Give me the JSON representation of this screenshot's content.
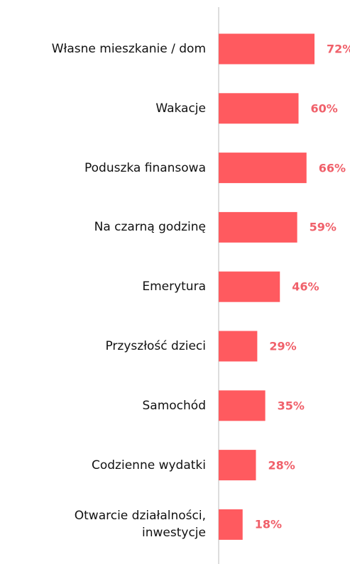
{
  "chart_data": {
    "type": "bar",
    "orientation": "horizontal",
    "categories": [
      "Własne mieszkanie / dom",
      "Wakacje",
      "Poduszka finansowa",
      "Na czarną godzinę",
      "Emerytura",
      "Przyszłość dzieci",
      "Samochód",
      "Codzienne wydatki",
      "Otwarcie działalności,\ninwestycje"
    ],
    "values": [
      72,
      60,
      66,
      59,
      46,
      29,
      35,
      28,
      18
    ],
    "value_labels": [
      "72%",
      "60%",
      "66%",
      "59%",
      "46%",
      "29%",
      "35%",
      "28%",
      "18%"
    ],
    "color": "#ff5a5f",
    "label_color": "#f0606a"
  }
}
